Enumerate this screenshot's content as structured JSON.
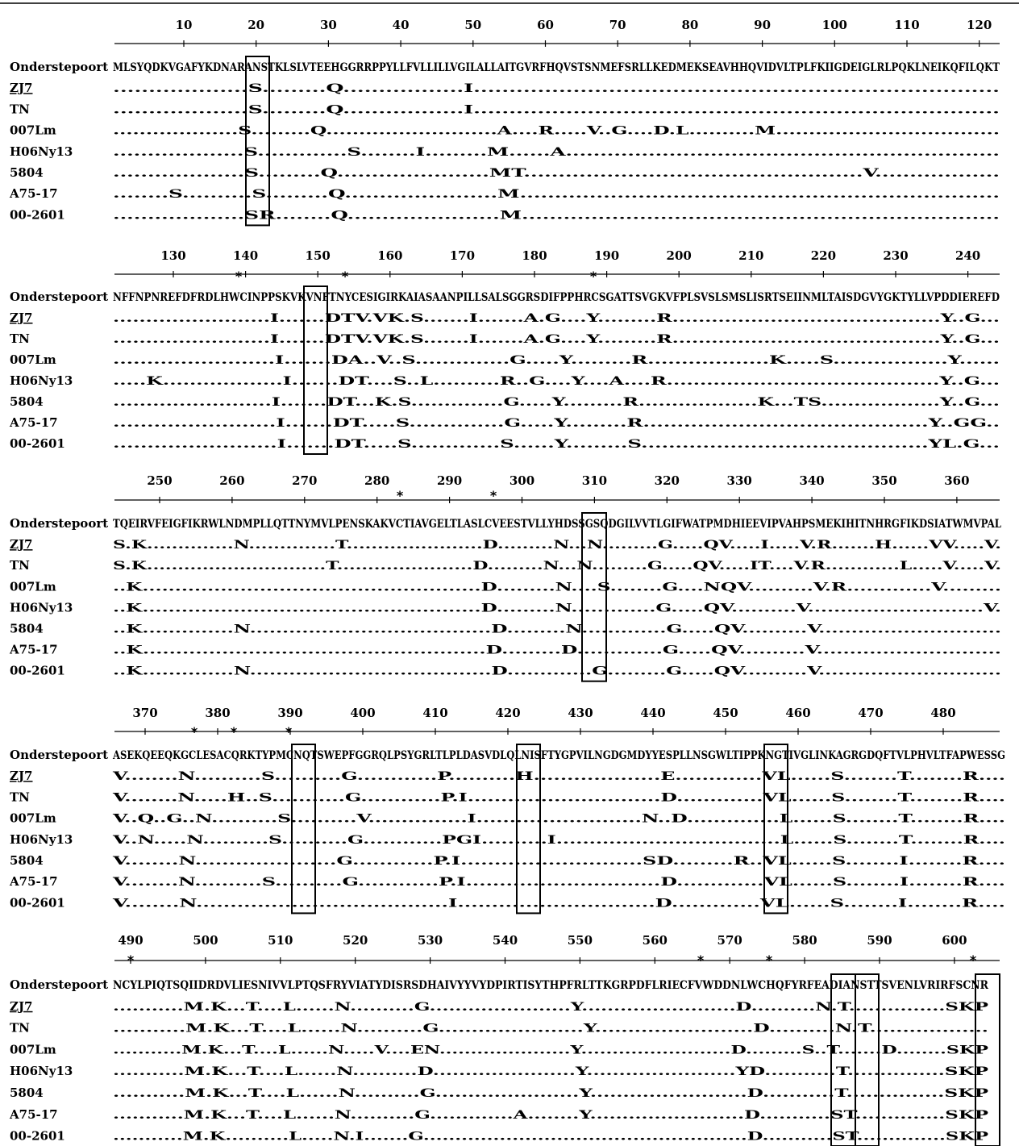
{
  "figure": {
    "reference_label": "Onderstepoort",
    "strain_labels": [
      "ZJ7",
      "TN",
      "007Lm",
      "H06Ny13",
      "5804",
      "A75-17",
      "00-2601"
    ],
    "underlined_strain": "ZJ7",
    "blocks": [
      {
        "ticks": [
          "10",
          "20",
          "30",
          "40",
          "50",
          "60",
          "70",
          "80",
          "90",
          "100",
          "110",
          "120"
        ],
        "stars": [],
        "rows": [
          "MLSYQDKVGAFYKDNARANSTKLSLVTEEHGGRRPPYLLFVLLILLVGILALLAITGVRFHQVSTSNMEFSRLLKEDMEKSEAVHHQVIDVLTPLFKIIGDEIGLRLPQKLNEIKQFILQKT",
          "...................S.........Q.................I..........................................................................",
          "...................S.........Q.................I..........................................................................",
          "...................S.........Q..........................A....R.....V..G....D.L..........M..................................",
          "...................S.............S........I.........M......A...............................................................",
          "...................S.........Q......................MT.................................................V..................",
          "........S..........S.........Q......................M.....................................................................",
          "...................SR........Q......................M....................................................................."
        ]
      },
      {
        "ticks": [
          "130",
          "140",
          "150",
          "160",
          "170",
          "180",
          "190",
          "200",
          "210",
          "220",
          "230",
          "240"
        ],
        "stars": [
          "*",
          "*",
          "*"
        ],
        "rows": [
          "NFFNPNREFDFRDLHWCINPPSKVKVNFTNYCESIGIRKAIASAANPILLSALSGGRSDIFPPHRCSGATTSVGKVFPLSVSLSMSLISRTSEIINMLTAISDGVYGKTYLLVPDDIEREFD",
          "........................I.......DTV.VK.S.......I.......A.G....Y.........R.........................................Y..G...",
          "........................I.......DTV.VK.S.......I.......A.G....Y.........R.........................................Y..G...",
          "........................I.......DA..V..S..............G.....Y.........R..................K.....S.................Y......",
          ".....K..................I.......DT....S..L..........R..G....Y....A....R.........................................Y..G...",
          "........................I.......DT...K.S..............G.....Y.........R..................K...TS..................Y..G...",
          "........................I.......DT.....S..............G.....Y.........R..........................................Y..GG..",
          "........................I.......DT.....S.............S......Y.........S..........................................YL.G..."
        ]
      },
      {
        "ticks": [
          "250",
          "260",
          "270",
          "280",
          "290",
          "300",
          "310",
          "320",
          "330",
          "340",
          "350",
          "360"
        ],
        "stars": [
          "*",
          "*"
        ],
        "rows": [
          "TQEIRVFEIGFIKRWLNDMPLLQTTNYMVLPENSKAKVCTIAVGELTLASLCVEESTVLLYHDSSGSQDGILVVTLGIFWATPMDHIEEVIPVAHPSMEKIHITNHRGFIKDSIATWMVPAL",
          "S.K..............N..............T......................D.........N...N.........G.....QV.....I.....V.R.......H......VV.....V.",
          "S.K.............................T......................D.........N...N.........G.....QV.....IT....V.R............L.....V.....V.",
          "..K....................................................D.........N....S........G....NQV..........V.R.............V.........",
          "..K....................................................D.........N.............G.....QV..........V...........................V.",
          "..K..............N.....................................D.........N.............G.....QV..........V............................",
          "..K....................................................D.........D.............G.....QV..........V............................",
          "..K..............N.....................................D.............G.........G.....QV..........V............................"
        ]
      },
      {
        "ticks": [
          "370",
          "380",
          "390",
          "400",
          "410",
          "420",
          "430",
          "440",
          "450",
          "460",
          "470",
          "480"
        ],
        "stars": [
          "*",
          "*",
          "*"
        ],
        "rows": [
          "ASEKQEEQKGCLESACQRKTYPMCNQTSWEPFGGRQLPSYGRLTLPLDASVDLQLNISFTYGPVILNGDGMDYYESPLLNSGWLTIPPKNGTIVGLINKAGRGDQFTVLPHVLTFAPWESSG",
          "V........N..........S..........G............P..........H...................E.............VL......S........T........R....",
          "V........N.....H..S...........G............P.I.............................D.............VL......S........T........R....",
          "V..Q..G..N..........S..........V...............I.........................N..D..............L......S........T........R....",
          "V..N.....N..........S..........G............PGI..........I..................................L......S........T........R....",
          "V........N.....................G............P.I...........................SD.........R..VL......S........I........R....",
          "V........N..........S..........G............P.I.............................D.............VL......S........I........R....",
          "V........N.....................................I.............................D.............VL......S........I........R...."
        ]
      },
      {
        "ticks": [
          "490",
          "500",
          "510",
          "520",
          "530",
          "540",
          "550",
          "560",
          "570",
          "580",
          "590",
          "600"
        ],
        "stars": [
          "*",
          "*",
          "*",
          "*"
        ],
        "rows": [
          "NCYLPIQTSQIIDRDVLIESNIVVLPTQSFRYVIATYDISRSDHAIVYYVYDPIRTISYTHPFRLTTKGRPDFLRIECFVWDDNLWCHQFYRFEADIANSTTSVENLVRIRFSCNR",
          "...........M.K...T....L......N..........G......................Y........................D..........N.T...............SKP",
          "...........M.K...T....L......N..........G......................Y........................D..........N.T..................",
          "...........M.K...T....L......N.....V....EN.....................Y........................D.........S..T.......D........SKP",
          "...........M.K...T....L......N..........D......................Y.......................YD...........T...............SKP",
          "...........M.K...T....L......N..........G......................Y........................D...........T...............SKP",
          "...........M.K...T....L......N..........G.............A........Y........................D...........ST..............SKP",
          "...........M.K..........L.....N.I.......G...................................................D...........ST..............SKP"
        ]
      }
    ]
  }
}
